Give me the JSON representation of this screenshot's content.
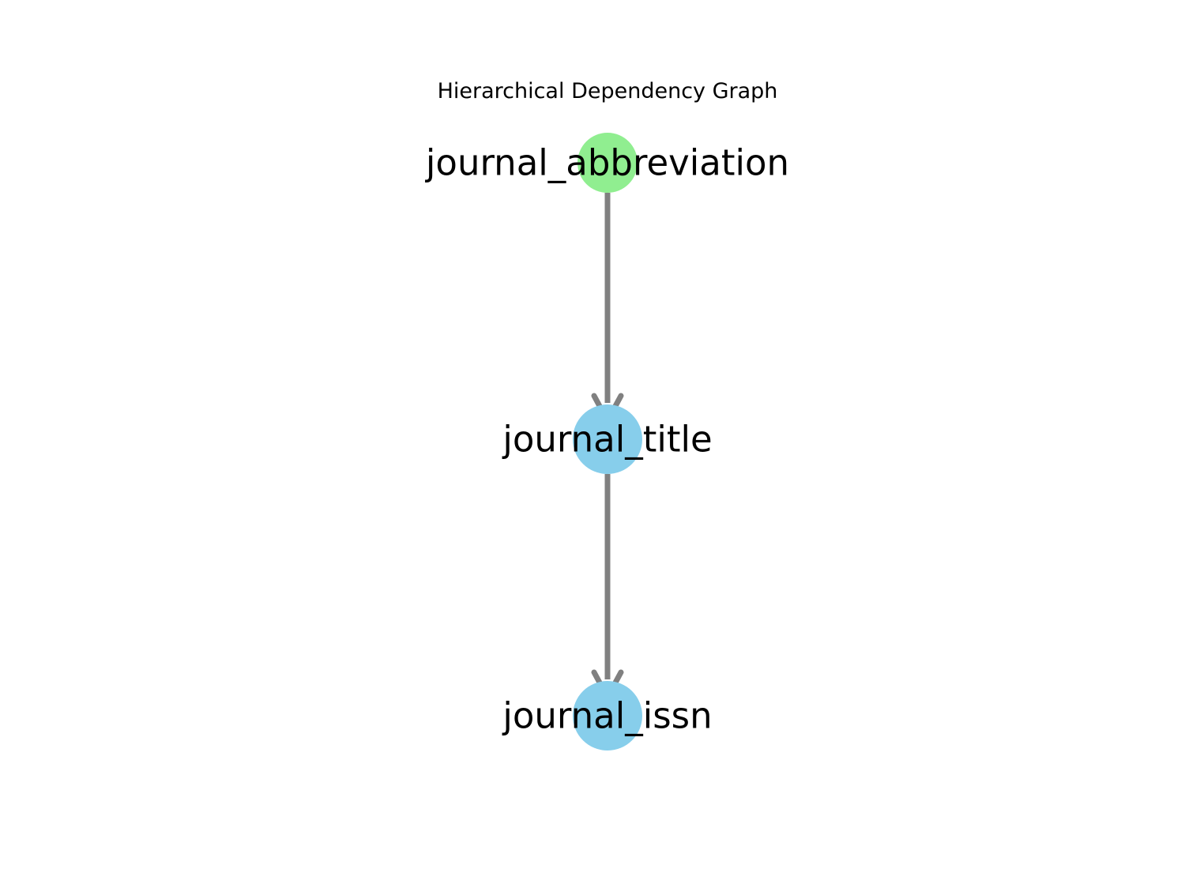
{
  "graph": {
    "title": "Hierarchical Dependency Graph",
    "nodes": [
      {
        "id": "journal_abbreviation",
        "label": "journal_abbreviation",
        "color": "#90ee90"
      },
      {
        "id": "journal_title",
        "label": "journal_title",
        "color": "#87ceeb"
      },
      {
        "id": "journal_issn",
        "label": "journal_issn",
        "color": "#87ceeb"
      }
    ],
    "edges": [
      {
        "source": "journal_abbreviation",
        "target": "journal_title"
      },
      {
        "source": "journal_title",
        "target": "journal_issn"
      }
    ],
    "edge_color": "#808080"
  }
}
